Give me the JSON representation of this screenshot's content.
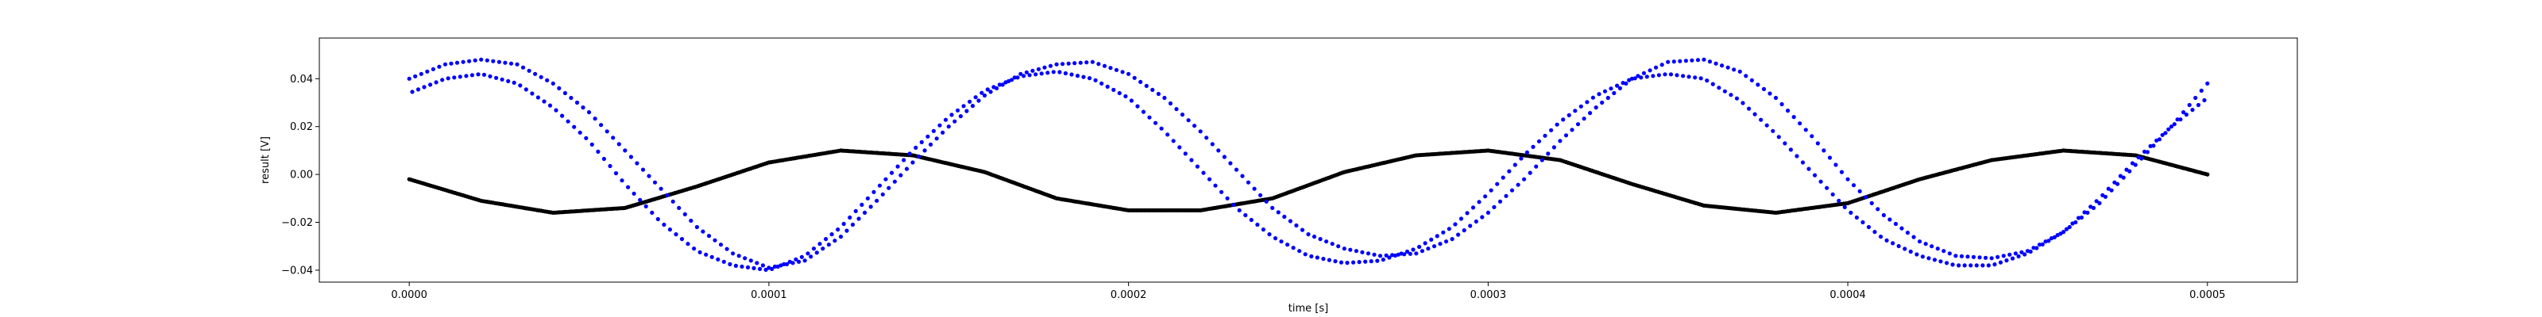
{
  "chart_data": {
    "type": "scatter",
    "title": "",
    "xlabel": "time [s]",
    "ylabel": "result [V]",
    "xlim": [
      -2.5e-05,
      0.000525
    ],
    "ylim": [
      -0.045,
      0.057
    ],
    "xticks": [
      0.0,
      0.0001,
      0.0002,
      0.0003,
      0.0004,
      0.0005
    ],
    "xtick_labels": [
      "0.0000",
      "0.0001",
      "0.0002",
      "0.0003",
      "0.0004",
      "0.0005"
    ],
    "yticks": [
      -0.04,
      -0.02,
      0.0,
      0.02,
      0.04
    ],
    "ytick_labels": [
      "−0.04",
      "−0.02",
      "0.00",
      "0.02",
      "0.04"
    ],
    "grid": false,
    "legend": "none",
    "series": [
      {
        "color": "#0000ff",
        "marker": "dot",
        "x": [
          0.0,
          1e-05,
          2e-05,
          3e-05,
          4e-05,
          5e-05,
          6e-05,
          7e-05,
          8e-05,
          9e-05,
          0.0001,
          0.00011,
          0.00012,
          0.00013,
          0.00014,
          0.00015,
          0.00016,
          0.00017,
          0.00018,
          0.00019,
          0.0002,
          0.00021,
          0.00022,
          0.00023,
          0.00024,
          0.00025,
          0.00026,
          0.00027,
          0.00028,
          0.00029,
          0.0003,
          0.00031,
          0.00032,
          0.00033,
          0.00034,
          0.00035,
          0.00036,
          0.00037,
          0.00038,
          0.00039,
          0.0004,
          0.00041,
          0.00042,
          0.00043,
          0.00044,
          0.00045,
          0.00046,
          0.00047,
          0.00048,
          0.00049,
          0.0005
        ],
        "y_upper": [
          0.04,
          0.046,
          0.048,
          0.046,
          0.038,
          0.026,
          0.01,
          -0.006,
          -0.022,
          -0.033,
          -0.039,
          -0.036,
          -0.026,
          -0.011,
          0.005,
          0.02,
          0.033,
          0.042,
          0.046,
          0.047,
          0.042,
          0.032,
          0.018,
          0.002,
          -0.014,
          -0.025,
          -0.031,
          -0.034,
          -0.033,
          -0.027,
          -0.016,
          -0.002,
          0.014,
          0.028,
          0.04,
          0.047,
          0.048,
          0.043,
          0.032,
          0.016,
          -0.002,
          -0.017,
          -0.028,
          -0.034,
          -0.035,
          -0.032,
          -0.024,
          -0.012,
          0.004,
          0.02,
          0.038
        ],
        "y_lower": [
          0.034,
          0.04,
          0.042,
          0.038,
          0.028,
          0.014,
          -0.004,
          -0.02,
          -0.032,
          -0.038,
          -0.04,
          -0.034,
          -0.022,
          -0.006,
          0.01,
          0.024,
          0.035,
          0.041,
          0.043,
          0.04,
          0.032,
          0.018,
          0.002,
          -0.014,
          -0.026,
          -0.034,
          -0.037,
          -0.036,
          -0.031,
          -0.022,
          -0.008,
          0.008,
          0.022,
          0.033,
          0.04,
          0.042,
          0.04,
          0.031,
          0.017,
          0.001,
          -0.015,
          -0.027,
          -0.034,
          -0.038,
          -0.038,
          -0.033,
          -0.024,
          -0.01,
          0.006,
          0.02,
          0.032
        ]
      },
      {
        "color": "#000000",
        "marker": "dot",
        "x": [
          0.0,
          2e-05,
          4e-05,
          6e-05,
          8e-05,
          0.0001,
          0.00012,
          0.00014,
          0.00016,
          0.00018,
          0.0002,
          0.00022,
          0.00024,
          0.00026,
          0.00028,
          0.0003,
          0.00032,
          0.00034,
          0.00036,
          0.00038,
          0.0004,
          0.00042,
          0.00044,
          0.00046,
          0.00048,
          0.0005
        ],
        "y": [
          -0.002,
          -0.011,
          -0.016,
          -0.014,
          -0.005,
          0.005,
          0.01,
          0.008,
          0.001,
          -0.01,
          -0.015,
          -0.015,
          -0.01,
          0.001,
          0.008,
          0.01,
          0.006,
          -0.004,
          -0.013,
          -0.016,
          -0.012,
          -0.002,
          0.006,
          0.01,
          0.008,
          0.0
        ]
      }
    ]
  }
}
